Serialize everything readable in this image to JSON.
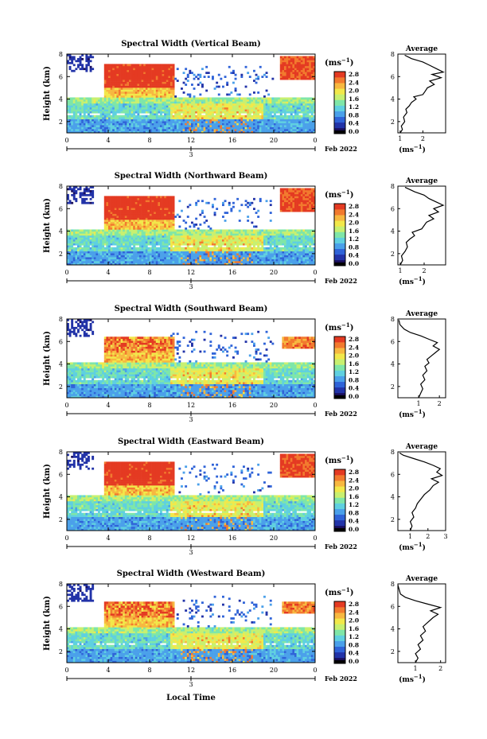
{
  "chart_data": {
    "type": "heatmap",
    "x_label": "Local Time",
    "x_ticks": [
      "0",
      "4",
      "8",
      "12",
      "16",
      "20",
      "0"
    ],
    "x_range_hours": [
      0,
      24
    ],
    "date_marker": "3",
    "date_label": "Feb 2022",
    "y_label": "Height (km)",
    "y_ticks": [
      "2",
      "4",
      "6",
      "8"
    ],
    "y_range_km": [
      1,
      8
    ],
    "colorbar": {
      "unit_label": "(ms",
      "unit_exp": "−1",
      "unit_close": ")",
      "ticks": [
        "0.0",
        "0.4",
        "0.8",
        "1.2",
        "1.6",
        "2.0",
        "2.4",
        "2.8"
      ]
    },
    "average_title": "Average",
    "average_unit": "(ms",
    "panels": [
      {
        "title": "Spectral Width (Vertical Beam)",
        "avg_ticks": [
          "1",
          "2"
        ],
        "avg_xlim": [
          0.9,
          3.0
        ],
        "avg_profile": [
          [
            1.0,
            1.0
          ],
          [
            1.1,
            1.3
          ],
          [
            1.05,
            1.6
          ],
          [
            1.2,
            2.0
          ],
          [
            1.15,
            2.4
          ],
          [
            1.3,
            2.8
          ],
          [
            1.25,
            3.1
          ],
          [
            1.4,
            3.4
          ],
          [
            1.5,
            3.7
          ],
          [
            1.7,
            4.0
          ],
          [
            1.6,
            4.2
          ],
          [
            2.0,
            4.4
          ],
          [
            2.1,
            4.7
          ],
          [
            2.2,
            5.0
          ],
          [
            2.5,
            5.3
          ],
          [
            2.3,
            5.6
          ],
          [
            2.8,
            5.9
          ],
          [
            2.4,
            6.2
          ],
          [
            2.9,
            6.4
          ],
          [
            2.6,
            6.7
          ],
          [
            2.3,
            7.0
          ],
          [
            2.0,
            7.3
          ],
          [
            1.5,
            7.6
          ],
          [
            1.2,
            7.9
          ]
        ]
      },
      {
        "title": "Spectral Width (Northward Beam)",
        "avg_ticks": [
          "1",
          "2"
        ],
        "avg_xlim": [
          0.9,
          2.9
        ],
        "avg_profile": [
          [
            1.0,
            1.0
          ],
          [
            1.1,
            1.4
          ],
          [
            1.05,
            1.8
          ],
          [
            1.2,
            2.2
          ],
          [
            1.3,
            2.6
          ],
          [
            1.25,
            3.0
          ],
          [
            1.4,
            3.3
          ],
          [
            1.6,
            3.6
          ],
          [
            1.5,
            3.9
          ],
          [
            1.9,
            4.2
          ],
          [
            2.0,
            4.5
          ],
          [
            2.1,
            4.8
          ],
          [
            2.4,
            5.1
          ],
          [
            2.2,
            5.4
          ],
          [
            2.6,
            5.7
          ],
          [
            2.4,
            6.0
          ],
          [
            2.8,
            6.3
          ],
          [
            2.5,
            6.6
          ],
          [
            2.2,
            6.9
          ],
          [
            2.0,
            7.2
          ],
          [
            1.6,
            7.5
          ],
          [
            1.2,
            7.9
          ]
        ]
      },
      {
        "title": "Spectral Width (Southward Beam)",
        "avg_ticks": [
          "1",
          "2"
        ],
        "avg_xlim": [
          0.0,
          2.3
        ],
        "avg_profile": [
          [
            1.0,
            1.0
          ],
          [
            1.1,
            1.4
          ],
          [
            1.2,
            1.8
          ],
          [
            1.1,
            2.2
          ],
          [
            1.3,
            2.6
          ],
          [
            1.2,
            3.0
          ],
          [
            1.4,
            3.4
          ],
          [
            1.3,
            3.8
          ],
          [
            1.5,
            4.1
          ],
          [
            1.4,
            4.4
          ],
          [
            1.6,
            4.7
          ],
          [
            1.8,
            5.0
          ],
          [
            2.0,
            5.3
          ],
          [
            1.7,
            5.6
          ],
          [
            1.9,
            5.9
          ],
          [
            1.5,
            6.2
          ],
          [
            1.1,
            6.5
          ],
          [
            0.6,
            6.8
          ],
          [
            0.3,
            7.1
          ],
          [
            0.1,
            7.5
          ],
          [
            0.05,
            7.9
          ]
        ]
      },
      {
        "title": "Spectral Width (Eastward Beam)",
        "avg_ticks": [
          "1",
          "2",
          "3"
        ],
        "avg_xlim": [
          0.3,
          3.0
        ],
        "avg_profile": [
          [
            1.0,
            1.0
          ],
          [
            1.1,
            1.4
          ],
          [
            1.0,
            1.8
          ],
          [
            1.2,
            2.2
          ],
          [
            1.1,
            2.6
          ],
          [
            1.3,
            3.0
          ],
          [
            1.4,
            3.4
          ],
          [
            1.6,
            3.8
          ],
          [
            1.8,
            4.2
          ],
          [
            2.1,
            4.6
          ],
          [
            2.3,
            5.0
          ],
          [
            2.6,
            5.3
          ],
          [
            2.2,
            5.6
          ],
          [
            2.8,
            5.9
          ],
          [
            2.5,
            6.2
          ],
          [
            2.7,
            6.5
          ],
          [
            2.3,
            6.8
          ],
          [
            1.8,
            7.1
          ],
          [
            1.2,
            7.4
          ],
          [
            0.6,
            7.7
          ],
          [
            0.4,
            7.9
          ]
        ]
      },
      {
        "title": "Spectral Width (Westward Beam)",
        "avg_ticks": [
          "1",
          "2"
        ],
        "avg_xlim": [
          0.3,
          2.2
        ],
        "avg_profile": [
          [
            1.0,
            1.0
          ],
          [
            1.1,
            1.4
          ],
          [
            1.0,
            1.8
          ],
          [
            1.2,
            2.2
          ],
          [
            1.1,
            2.6
          ],
          [
            1.3,
            3.0
          ],
          [
            1.2,
            3.4
          ],
          [
            1.4,
            3.8
          ],
          [
            1.3,
            4.2
          ],
          [
            1.5,
            4.6
          ],
          [
            1.7,
            5.0
          ],
          [
            1.9,
            5.3
          ],
          [
            1.6,
            5.6
          ],
          [
            2.0,
            5.9
          ],
          [
            1.5,
            6.2
          ],
          [
            1.0,
            6.5
          ],
          [
            0.6,
            6.8
          ],
          [
            0.4,
            7.1
          ],
          [
            0.35,
            7.5
          ],
          [
            0.3,
            7.9
          ]
        ]
      }
    ]
  }
}
